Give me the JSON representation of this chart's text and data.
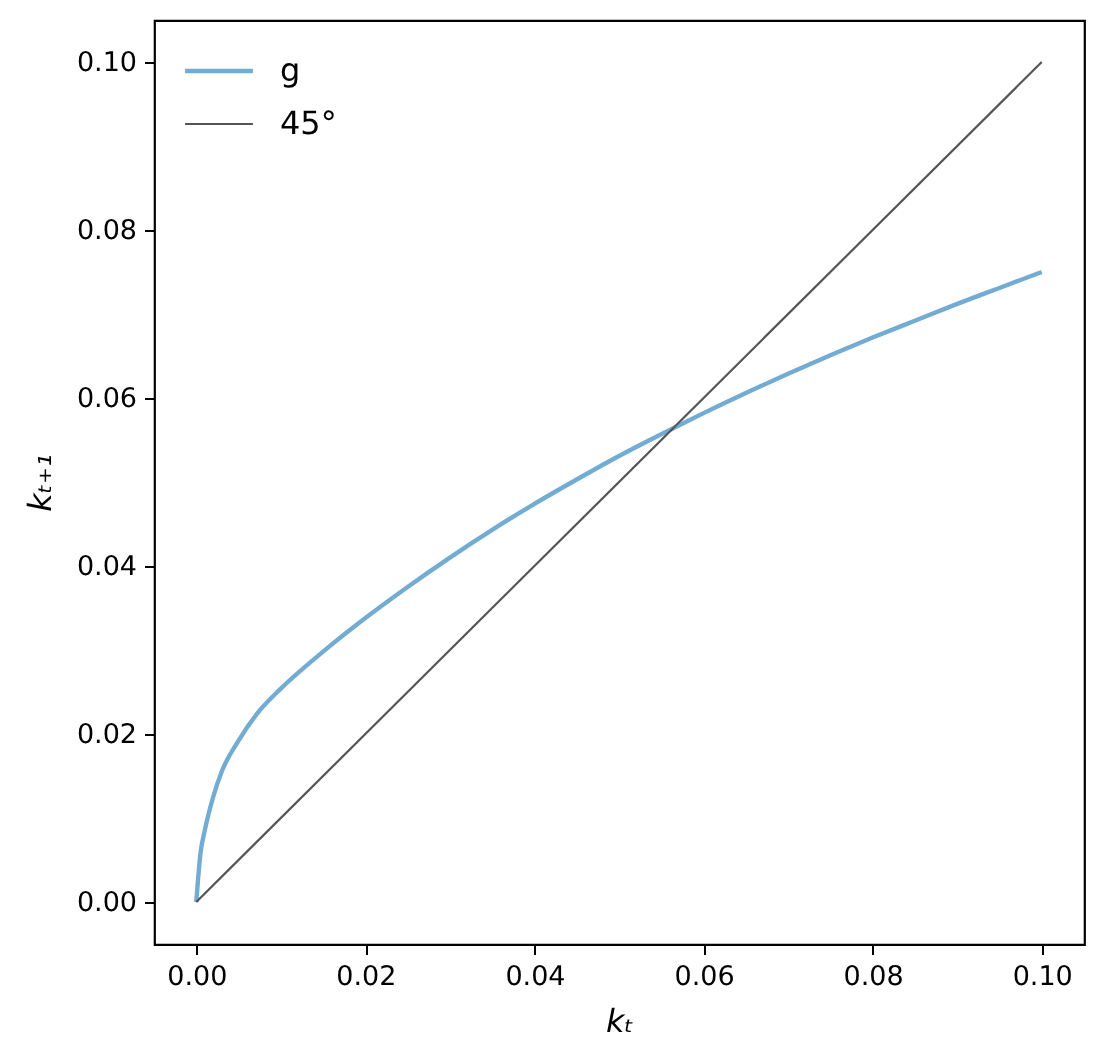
{
  "chart_data": {
    "type": "line",
    "xlabel": "kₜ",
    "ylabel": "kₜ₊₁",
    "xlim": [
      -0.005,
      0.105
    ],
    "ylim": [
      -0.005,
      0.105
    ],
    "xticks": [
      {
        "value": 0,
        "label": "0.00"
      },
      0.02,
      0.04,
      0.06,
      0.08,
      {
        "value": 0.1,
        "label": "0.10"
      }
    ],
    "yticks": [
      {
        "value": 0,
        "label": "0.00"
      },
      0.02,
      0.04,
      0.06,
      0.08,
      {
        "value": 0.1,
        "label": "0.10"
      }
    ],
    "grid": false,
    "legend": "top left",
    "series": [
      {
        "name": "g",
        "color": "#73acd3",
        "x": [
          0,
          0.0005,
          0.001,
          0.002,
          0.003,
          0.005,
          0.0075,
          0.01,
          0.015,
          0.02,
          0.025,
          0.03,
          0.035,
          0.04,
          0.045,
          0.05,
          0.056,
          0.06,
          0.065,
          0.07,
          0.075,
          0.08,
          0.085,
          0.09,
          0.095,
          0.1
        ],
        "values": [
          0,
          0.0058,
          0.0085,
          0.0125,
          0.0155,
          0.0192,
          0.0228,
          0.0254,
          0.0298,
          0.0338,
          0.0375,
          0.041,
          0.0443,
          0.0474,
          0.0503,
          0.0531,
          0.0562,
          0.0582,
          0.0606,
          0.0629,
          0.0651,
          0.0672,
          0.0692,
          0.0712,
          0.0731,
          0.075
        ]
      },
      {
        "name": "45°",
        "color": "#555555",
        "x": [
          0,
          0.1
        ],
        "values": [
          0,
          0.1
        ]
      }
    ]
  }
}
